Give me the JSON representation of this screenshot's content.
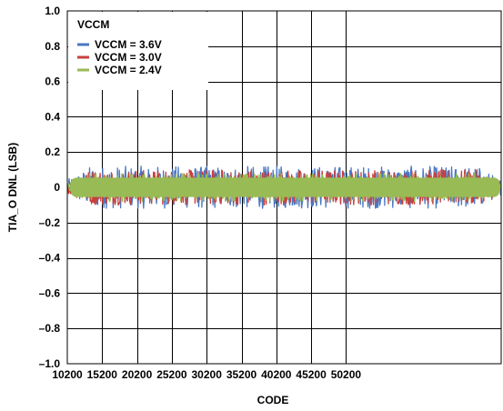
{
  "chart_data": {
    "type": "scatter",
    "title": "",
    "xlabel": "CODE",
    "ylabel": "TIA_O DNL (LSB)",
    "xlim": [
      10200,
      54200
    ],
    "ylim": [
      -1.0,
      1.0
    ],
    "grid": true,
    "x_ticks": [
      10200,
      15200,
      20200,
      25200,
      30200,
      35200,
      40200,
      45200,
      50200
    ],
    "y_ticks": [
      1.0,
      0.8,
      0.6,
      0.4,
      0.2,
      0,
      -0.2,
      -0.4,
      -0.6,
      -0.8,
      -1.0
    ],
    "x_tick_labels": [
      "10200",
      "15200",
      "20200",
      "25200",
      "30200",
      "35200",
      "40200",
      "45200",
      "50200"
    ],
    "y_tick_labels": [
      "1.0",
      "0.8",
      "0.6",
      "0.4",
      "0.2",
      "0",
      "–0.2",
      "–0.4",
      "–0.6",
      "–0.8",
      "–1.0"
    ],
    "legend": {
      "title": "VCCM",
      "position": "top-left"
    },
    "series": [
      {
        "name": "VCCM = 3.6V",
        "color": "#4a78c2",
        "mean": 0.0,
        "band_min": -0.12,
        "band_max": 0.12
      },
      {
        "name": "VCCM = 3.0V",
        "color": "#c8403c",
        "mean": 0.0,
        "band_min": -0.1,
        "band_max": 0.1
      },
      {
        "name": "VCCM = 2.4V",
        "color": "#99bb55",
        "mean": 0.0,
        "band_min": -0.08,
        "band_max": 0.08
      }
    ]
  }
}
